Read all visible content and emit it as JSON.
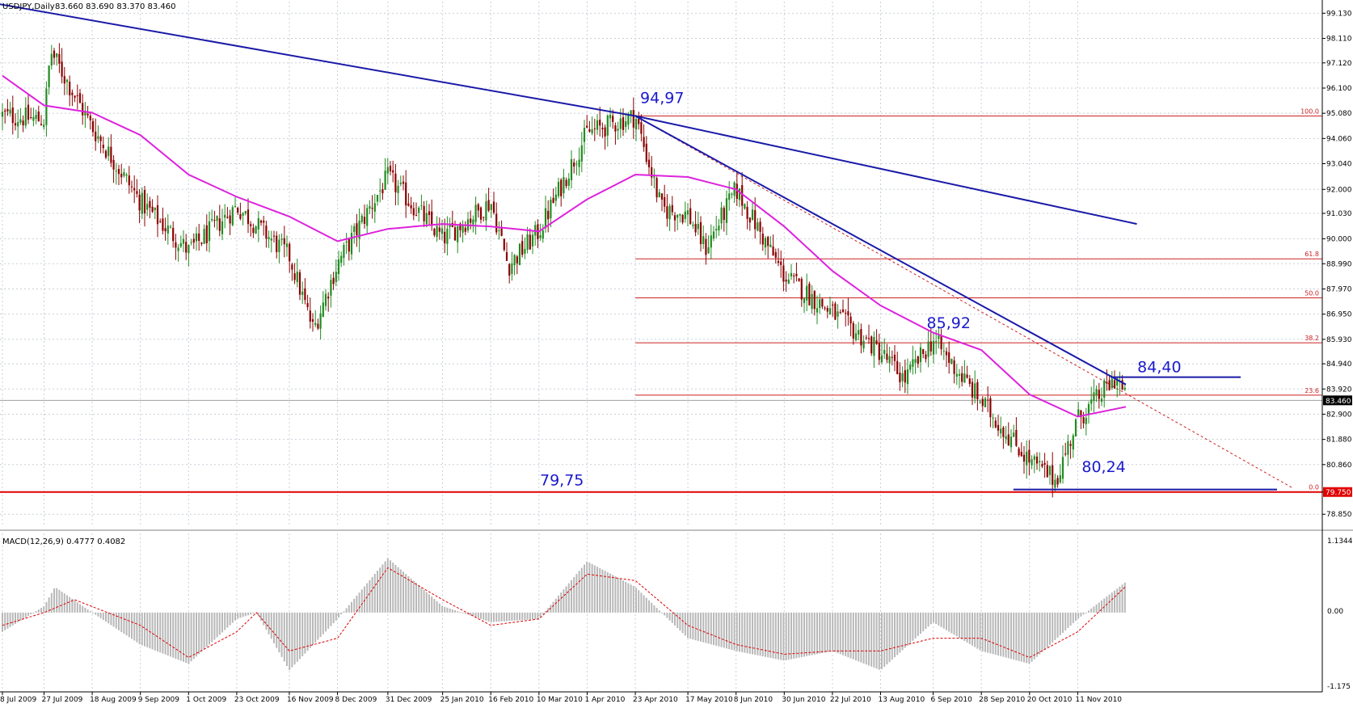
{
  "header": {
    "symbol": "USDJPY,Daily",
    "ohlc": "83.660 83.690 83.370 83.460"
  },
  "macd": {
    "label": "MACD(12,26,9) 0.4777 0.4082",
    "ticks": [
      "1.1344",
      "0.00",
      "-1.175"
    ]
  },
  "chart_data": {
    "type": "candlestick",
    "symbol": "USDJPY",
    "timeframe": "Daily",
    "price_ylim": [
      78.4,
      99.6
    ],
    "price_ticks": [
      99.13,
      98.11,
      97.12,
      96.1,
      95.08,
      94.06,
      93.04,
      92.0,
      91.03,
      90.0,
      88.99,
      87.97,
      86.95,
      85.93,
      84.94,
      83.92,
      82.9,
      81.88,
      80.86,
      79.75,
      78.85
    ],
    "price_tick_labels": [
      "99.130",
      "98.110",
      "97.120",
      "96.100",
      "95.080",
      "94.060",
      "93.040",
      "92.000",
      "91.030",
      "90.000",
      "88.990",
      "87.970",
      "86.950",
      "85.930",
      "84.940",
      "83.920",
      "82.900",
      "81.880",
      "80.860",
      "79.750",
      "78.850"
    ],
    "current_price": "83.460",
    "support_level": "79.750",
    "x_tick_labels": [
      "8 Jul 2009",
      "27 Jul 2009",
      "18 Aug 2009",
      "9 Sep 2009",
      "1 Oct 2009",
      "23 Oct 2009",
      "16 Nov 2009",
      "8 Dec 2009",
      "31 Dec 2009",
      "25 Jan 2010",
      "16 Feb 2010",
      "10 Mar 2010",
      "1 Apr 2010",
      "23 Apr 2010",
      "17 May 2010",
      "8 Jun 2010",
      "30 Jun 2010",
      "22 Jul 2010",
      "13 Aug 2010",
      "6 Sep 2010",
      "28 Sep 2010",
      "20 Oct 2010",
      "11 Nov 2010"
    ],
    "close_path": [
      [
        "8 Jul 2009",
        95.0
      ],
      [
        "27 Jul 2009",
        94.8
      ],
      [
        "30 Jul 2009",
        97.6
      ],
      [
        "18 Aug 2009",
        94.5
      ],
      [
        "9 Sep 2009",
        91.5
      ],
      [
        "1 Oct 2009",
        89.5
      ],
      [
        "23 Oct 2009",
        91.3
      ],
      [
        "16 Nov 2009",
        89.3
      ],
      [
        "27 Nov 2009",
        86.3
      ],
      [
        "8 Dec 2009",
        89.0
      ],
      [
        "31 Dec 2009",
        92.5
      ],
      [
        "25 Jan 2010",
        90.0
      ],
      [
        "16 Feb 2010",
        91.5
      ],
      [
        "24 Feb 2010",
        88.9
      ],
      [
        "10 Mar 2010",
        90.3
      ],
      [
        "1 Apr 2010",
        94.3
      ],
      [
        "23 Apr 2010",
        94.97
      ],
      [
        "5 May 2010",
        91.2
      ],
      [
        "17 May 2010",
        91.0
      ],
      [
        "25 May 2010",
        89.6
      ],
      [
        "8 Jun 2010",
        92.0
      ],
      [
        "30 Jun 2010",
        88.5
      ],
      [
        "22 Jul 2010",
        87.0
      ],
      [
        "13 Aug 2010",
        85.4
      ],
      [
        "24 Aug 2010",
        84.3
      ],
      [
        "6 Sep 2010",
        85.92
      ],
      [
        "28 Sep 2010",
        83.4
      ],
      [
        "20 Oct 2010",
        81.0
      ],
      [
        "1 Nov 2010",
        80.24
      ],
      [
        "11 Nov 2010",
        82.7
      ],
      [
        "29 Nov 2010",
        84.4
      ],
      [
        "3 Dec 2010",
        83.46
      ]
    ],
    "moving_average_path": [
      [
        "8 Jul 2009",
        96.6
      ],
      [
        "27 Jul 2009",
        95.4
      ],
      [
        "18 Aug 2009",
        95.1
      ],
      [
        "9 Sep 2009",
        94.2
      ],
      [
        "1 Oct 2009",
        92.6
      ],
      [
        "23 Oct 2009",
        91.7
      ],
      [
        "16 Nov 2009",
        90.9
      ],
      [
        "8 Dec 2009",
        89.9
      ],
      [
        "31 Dec 2009",
        90.4
      ],
      [
        "25 Jan 2010",
        90.6
      ],
      [
        "16 Feb 2010",
        90.5
      ],
      [
        "10 Mar 2010",
        90.3
      ],
      [
        "1 Apr 2010",
        91.6
      ],
      [
        "23 Apr 2010",
        92.6
      ],
      [
        "17 May 2010",
        92.5
      ],
      [
        "8 Jun 2010",
        92.0
      ],
      [
        "30 Jun 2010",
        90.5
      ],
      [
        "22 Jul 2010",
        88.7
      ],
      [
        "13 Aug 2010",
        87.3
      ],
      [
        "6 Sep 2010",
        86.2
      ],
      [
        "28 Sep 2010",
        85.5
      ],
      [
        "20 Oct 2010",
        83.7
      ],
      [
        "11 Nov 2010",
        82.8
      ],
      [
        "3 Dec 2010",
        83.2
      ]
    ],
    "fibonacci": {
      "levels": [
        {
          "label": "100.0",
          "price": 94.97
        },
        {
          "label": "61.8",
          "price": 89.19
        },
        {
          "label": "50.0",
          "price": 87.61
        },
        {
          "label": "38.2",
          "price": 85.79
        },
        {
          "label": "23.6",
          "price": 83.67
        },
        {
          "label": "0.0",
          "price": 79.75
        }
      ]
    },
    "annotations": [
      {
        "text": "94,97",
        "price": 94.97
      },
      {
        "text": "85,92",
        "price": 85.92
      },
      {
        "text": "84,40",
        "price": 84.4
      },
      {
        "text": "80,24",
        "price": 80.24
      },
      {
        "text": "79,75",
        "price": 79.75
      }
    ],
    "trendlines": [
      {
        "from": [
          "30 Jun 2009",
          99.6
        ],
        "to": [
          "23 Apr 2010",
          94.97
        ]
      },
      {
        "from": [
          "23 Apr 2010",
          94.97
        ],
        "to": [
          "8 Dec 2010",
          90.6
        ]
      },
      {
        "from": [
          "23 Apr 2010",
          94.97
        ],
        "to": [
          "3 Dec 2010",
          84.1
        ]
      }
    ],
    "macd_ylim": [
      -1.175,
      1.1344
    ],
    "macd_histogram_path": [
      [
        "8 Jul 2009",
        -0.3
      ],
      [
        "27 Jul 2009",
        0.1
      ],
      [
        "1 Aug 2009",
        0.4
      ],
      [
        "18 Aug 2009",
        0.0
      ],
      [
        "9 Sep 2009",
        -0.5
      ],
      [
        "1 Oct 2009",
        -0.8
      ],
      [
        "23 Oct 2009",
        -0.1
      ],
      [
        "1 Nov 2009",
        0.0
      ],
      [
        "16 Nov 2009",
        -0.9
      ],
      [
        "8 Dec 2009",
        -0.1
      ],
      [
        "31 Dec 2009",
        0.85
      ],
      [
        "25 Jan 2010",
        0.1
      ],
      [
        "16 Feb 2010",
        -0.15
      ],
      [
        "10 Mar 2010",
        -0.1
      ],
      [
        "1 Apr 2010",
        0.8
      ],
      [
        "23 Apr 2010",
        0.4
      ],
      [
        "17 May 2010",
        -0.4
      ],
      [
        "8 Jun 2010",
        -0.6
      ],
      [
        "30 Jun 2010",
        -0.75
      ],
      [
        "22 Jul 2010",
        -0.6
      ],
      [
        "13 Aug 2010",
        -0.9
      ],
      [
        "6 Sep 2010",
        -0.15
      ],
      [
        "28 Sep 2010",
        -0.6
      ],
      [
        "20 Oct 2010",
        -0.8
      ],
      [
        "11 Nov 2010",
        -0.1
      ],
      [
        "3 Dec 2010",
        0.48
      ]
    ],
    "macd_signal_path": [
      [
        "8 Jul 2009",
        -0.2
      ],
      [
        "27 Jul 2009",
        0.0
      ],
      [
        "10 Aug 2009",
        0.2
      ],
      [
        "9 Sep 2009",
        -0.2
      ],
      [
        "1 Oct 2009",
        -0.7
      ],
      [
        "23 Oct 2009",
        -0.3
      ],
      [
        "1 Nov 2009",
        0.0
      ],
      [
        "16 Nov 2009",
        -0.6
      ],
      [
        "8 Dec 2009",
        -0.4
      ],
      [
        "31 Dec 2009",
        0.7
      ],
      [
        "25 Jan 2010",
        0.2
      ],
      [
        "16 Feb 2010",
        -0.2
      ],
      [
        "10 Mar 2010",
        -0.1
      ],
      [
        "1 Apr 2010",
        0.6
      ],
      [
        "23 Apr 2010",
        0.5
      ],
      [
        "17 May 2010",
        -0.2
      ],
      [
        "8 Jun 2010",
        -0.5
      ],
      [
        "30 Jun 2010",
        -0.65
      ],
      [
        "22 Jul 2010",
        -0.6
      ],
      [
        "13 Aug 2010",
        -0.6
      ],
      [
        "6 Sep 2010",
        -0.4
      ],
      [
        "28 Sep 2010",
        -0.4
      ],
      [
        "20 Oct 2010",
        -0.7
      ],
      [
        "11 Nov 2010",
        -0.3
      ],
      [
        "3 Dec 2010",
        0.41
      ]
    ]
  },
  "colors": {
    "bull_candle": "#228b22",
    "bear_candle": "#8b0000",
    "moving_average": "#dd22dd",
    "trendline": "#1a1aa8",
    "fib_line": "#cc2222",
    "support_line": "#e00000",
    "macd_histogram": "#b8b8b8",
    "macd_signal": "#e00000",
    "grid": "#c8d0d8",
    "label_blue": "#1a1acd"
  }
}
